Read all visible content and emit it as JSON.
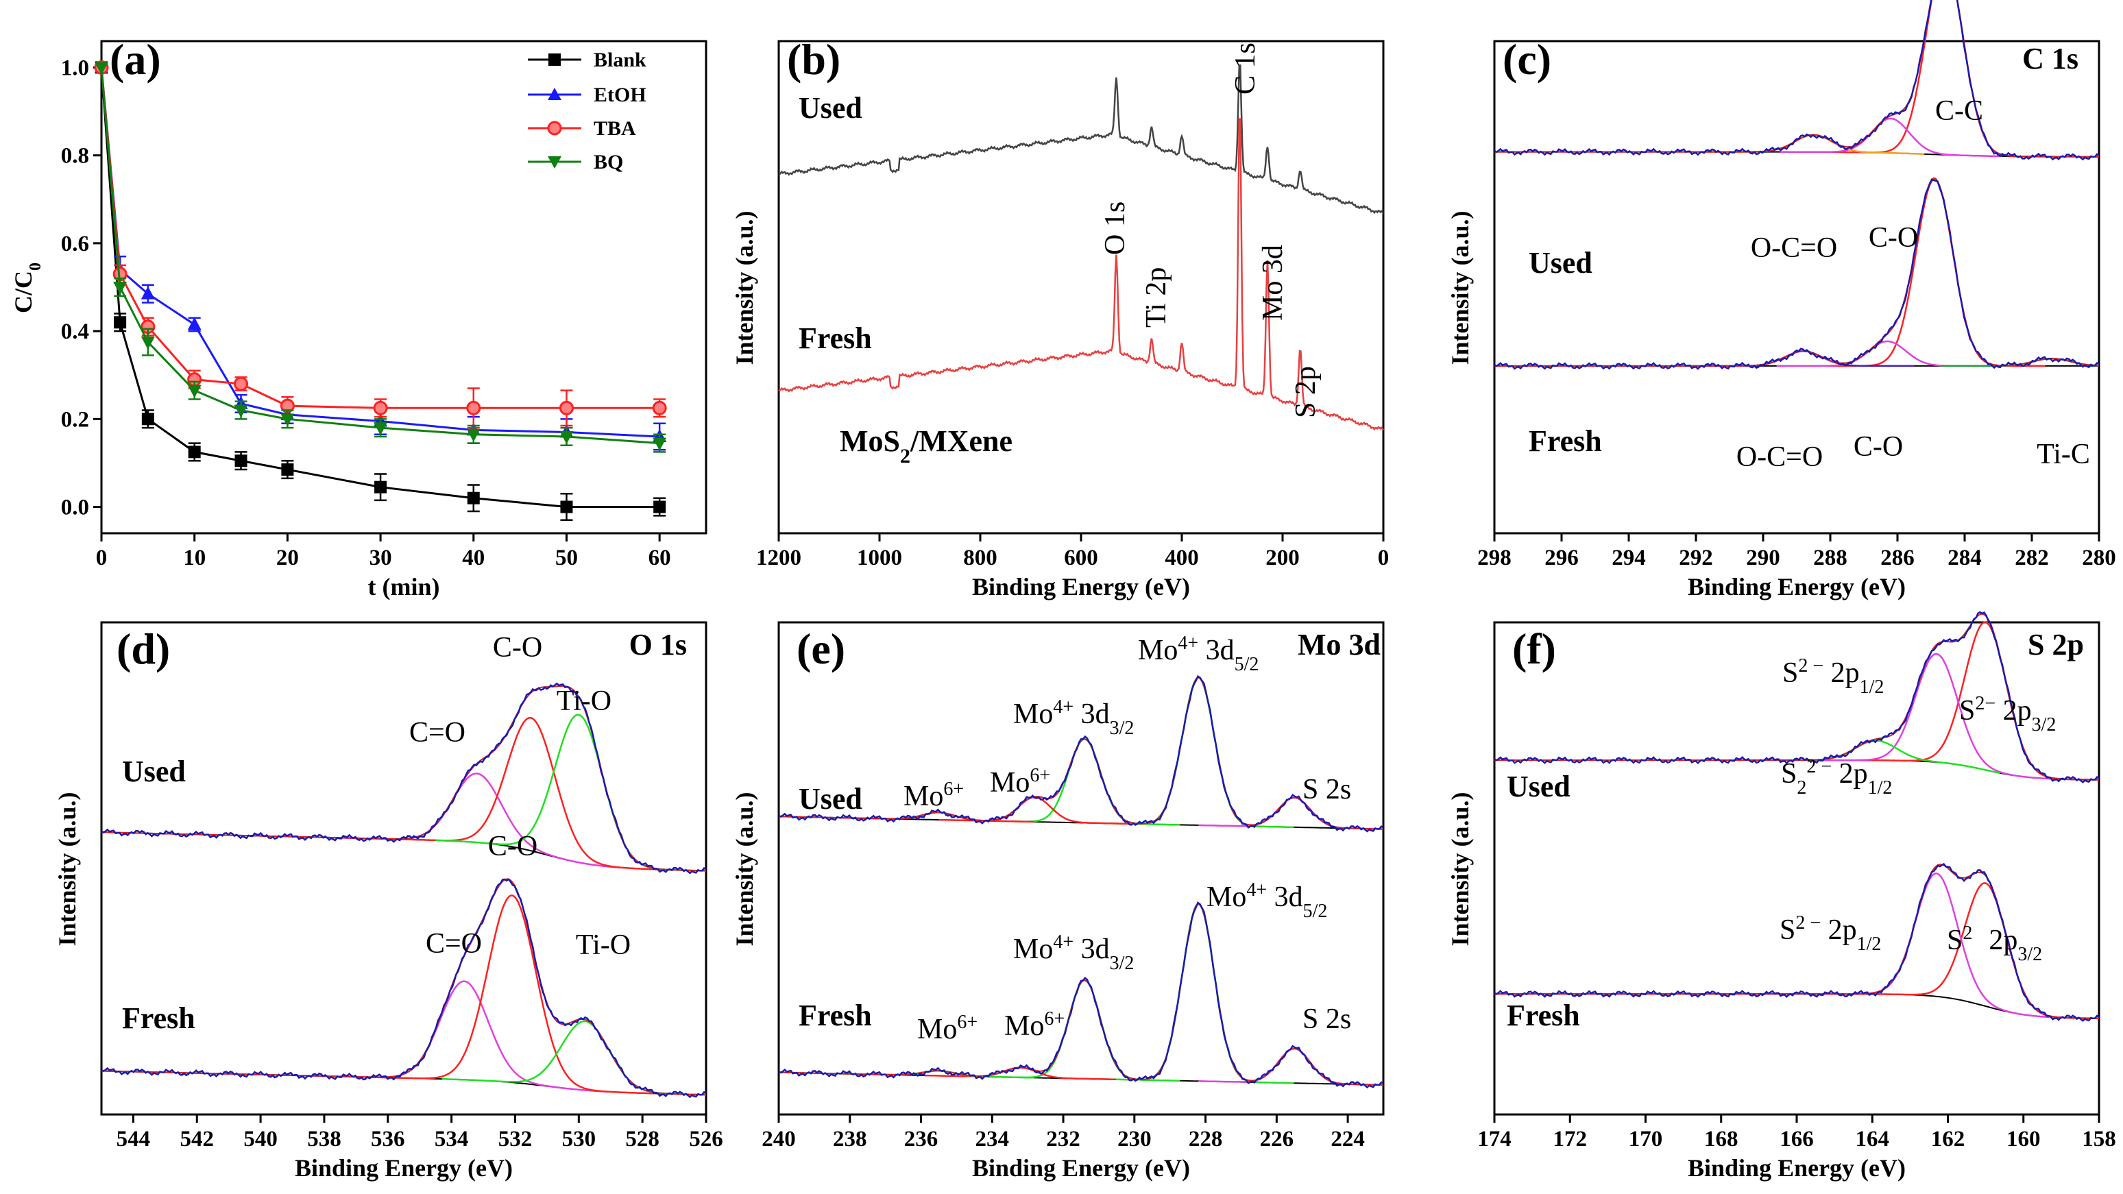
{
  "chart_data": [
    {
      "id": "a",
      "panel_label": "(a)",
      "type": "line",
      "xlabel": "t (min)",
      "ylabel": "C/C",
      "ylabel_sub": "0",
      "xlim": [
        0,
        65
      ],
      "ylim": [
        -0.06,
        1.06
      ],
      "xticks": [
        0,
        10,
        20,
        30,
        40,
        50,
        60
      ],
      "xtick_labels": [
        "0",
        "10",
        "20",
        "30",
        "40",
        "50",
        "60"
      ],
      "yticks": [
        0.0,
        0.2,
        0.4,
        0.6,
        0.8,
        1.0
      ],
      "ytick_labels": [
        "0.0",
        "0.2",
        "0.4",
        "0.6",
        "0.8",
        "1.0"
      ],
      "x": [
        0,
        2,
        5,
        10,
        15,
        20,
        30,
        40,
        50,
        60
      ],
      "series": [
        {
          "name": "Blank",
          "color": "#000000",
          "marker": "square",
          "values": [
            1.0,
            0.42,
            0.2,
            0.125,
            0.105,
            0.085,
            0.045,
            0.02,
            0.0,
            0.0
          ],
          "errors": [
            0,
            0.02,
            0.02,
            0.02,
            0.02,
            0.02,
            0.03,
            0.03,
            0.03,
            0.02
          ]
        },
        {
          "name": "EtOH",
          "color": "#1a1aff",
          "marker": "triangle-up",
          "values": [
            1.0,
            0.54,
            0.485,
            0.415,
            0.235,
            0.21,
            0.195,
            0.175,
            0.17,
            0.16
          ],
          "errors": [
            0,
            0.03,
            0.02,
            0.015,
            0.02,
            0.02,
            0.03,
            0.03,
            0.03,
            0.03
          ]
        },
        {
          "name": "TBA",
          "color": "#ff2020",
          "marker": "circle",
          "values": [
            1.0,
            0.53,
            0.41,
            0.29,
            0.28,
            0.23,
            0.225,
            0.225,
            0.225,
            0.225
          ],
          "errors": [
            0,
            0.02,
            0.02,
            0.02,
            0.015,
            0.02,
            0.02,
            0.045,
            0.04,
            0.02
          ]
        },
        {
          "name": "BQ",
          "color": "#108010",
          "marker": "triangle-down",
          "values": [
            1.0,
            0.5,
            0.375,
            0.265,
            0.22,
            0.2,
            0.18,
            0.165,
            0.16,
            0.145
          ],
          "errors": [
            0,
            0.02,
            0.03,
            0.02,
            0.02,
            0.02,
            0.02,
            0.02,
            0.02,
            0.02
          ]
        }
      ],
      "legend": "top-right"
    },
    {
      "id": "b",
      "panel_label": "(b)",
      "type": "line",
      "xlabel": "Binding Energy (eV)",
      "ylabel": "Intensity (a.u.)",
      "xlim": [
        1200,
        0
      ],
      "xticks": [
        1200,
        1000,
        800,
        600,
        400,
        200,
        0
      ],
      "xtick_labels": [
        "1200",
        "1000",
        "800",
        "600",
        "400",
        "200",
        "0"
      ],
      "sample_label": "MoS",
      "sample_label_sub": "2",
      "sample_label_rest": "/MXene",
      "series": [
        {
          "name": "Used",
          "color": "#444444",
          "level": 0.73,
          "peaks": [
            [
              530,
              0.12
            ],
            [
              460,
              0.04
            ],
            [
              400,
              0.04
            ],
            [
              285,
              0.23
            ],
            [
              230,
              0.07
            ],
            [
              165,
              0.04
            ]
          ]
        },
        {
          "name": "Fresh",
          "color": "#e84040",
          "level": 0.29,
          "peaks": [
            [
              530,
              0.2
            ],
            [
              460,
              0.05
            ],
            [
              400,
              0.06
            ],
            [
              285,
              0.58
            ],
            [
              230,
              0.28
            ],
            [
              165,
              0.12
            ]
          ]
        }
      ],
      "annotations": [
        "O 1s",
        "Ti 2p",
        "C 1s",
        "Mo 3d",
        "S 2p"
      ]
    },
    {
      "id": "c",
      "panel_label": "(c)",
      "title": "C 1s",
      "type": "line",
      "xlabel": "Binding Energy (eV)",
      "ylabel": "Intensity (a.u.)",
      "xlim": [
        298,
        280
      ],
      "xticks": [
        298,
        296,
        294,
        292,
        290,
        288,
        286,
        284,
        282,
        280
      ],
      "xtick_labels": [
        "298",
        "296",
        "294",
        "292",
        "290",
        "288",
        "286",
        "284",
        "282",
        "280"
      ],
      "series": [
        {
          "name": "Used",
          "components": [
            {
              "label": "C-C",
              "center": 284.6,
              "height": 0.4,
              "color": "#ff2020"
            },
            {
              "label": "C-O",
              "center": 286.2,
              "height": 0.07,
              "color": "#e040e0"
            },
            {
              "label": "O-C=O",
              "center": 288.5,
              "height": 0.035,
              "color": "#f0a020"
            }
          ]
        },
        {
          "name": "Fresh",
          "components": [
            {
              "label": "C-C",
              "center": 284.9,
              "height": 0.38,
              "color": "#ff2020"
            },
            {
              "label": "C-O",
              "center": 286.3,
              "height": 0.05,
              "color": "#e040e0"
            },
            {
              "label": "O-C=O",
              "center": 288.8,
              "height": 0.03,
              "color": "#4020c0"
            },
            {
              "label": "Ti-C",
              "center": 281.4,
              "height": 0.015,
              "color": "#20a040"
            }
          ]
        }
      ]
    },
    {
      "id": "d",
      "panel_label": "(d)",
      "title": "O 1s",
      "type": "line",
      "xlabel": "Binding Energy (eV)",
      "ylabel": "Intensity (a.u.)",
      "xlim": [
        545,
        526
      ],
      "xticks": [
        544,
        542,
        540,
        538,
        536,
        534,
        532,
        530,
        528,
        526
      ],
      "xtick_labels": [
        "544",
        "542",
        "540",
        "538",
        "536",
        "534",
        "532",
        "530",
        "528",
        "526"
      ],
      "series": [
        {
          "name": "Used",
          "components": [
            {
              "label": "C=O",
              "center": 533.2,
              "height": 0.14,
              "color": "#e040e0"
            },
            {
              "label": "C-O",
              "center": 531.5,
              "height": 0.27,
              "color": "#ff2020"
            },
            {
              "label": "Ti-O",
              "center": 530.0,
              "height": 0.3,
              "color": "#20e020"
            }
          ]
        },
        {
          "name": "Fresh",
          "components": [
            {
              "label": "C=O",
              "center": 533.6,
              "height": 0.2,
              "color": "#e040e0"
            },
            {
              "label": "C-O",
              "center": 532.1,
              "height": 0.38,
              "color": "#ff2020"
            },
            {
              "label": "Ti-O",
              "center": 529.8,
              "height": 0.14,
              "color": "#20e020"
            }
          ]
        }
      ]
    },
    {
      "id": "e",
      "panel_label": "(e)",
      "title": "Mo 3d",
      "type": "line",
      "xlabel": "Binding Energy (eV)",
      "ylabel": "Intensity (a.u.)",
      "xlim": [
        240,
        223
      ],
      "xticks": [
        240,
        238,
        236,
        234,
        232,
        230,
        228,
        226,
        224
      ],
      "xtick_labels": [
        "240",
        "238",
        "236",
        "234",
        "232",
        "230",
        "228",
        "226",
        "224"
      ],
      "series": [
        {
          "name": "Used",
          "components": [
            {
              "label": "Mo4+ 3d5/2",
              "center": 228.2,
              "height": 0.3,
              "color": "#20e020"
            },
            {
              "label": "Mo4+ 3d3/2",
              "center": 231.4,
              "height": 0.17,
              "color": "#20e020"
            },
            {
              "label": "Mo6+",
              "center": 232.8,
              "height": 0.05,
              "color": "#ff2020"
            },
            {
              "label": "Mo6+",
              "center": 235.5,
              "height": 0.015,
              "color": "#ff2020"
            },
            {
              "label": "S 2s",
              "center": 225.5,
              "height": 0.06,
              "color": "#e040e0"
            }
          ]
        },
        {
          "name": "Fresh",
          "components": [
            {
              "label": "Mo4+ 3d5/2",
              "center": 228.2,
              "height": 0.36,
              "color": "#20e020"
            },
            {
              "label": "Mo4+ 3d3/2",
              "center": 231.4,
              "height": 0.2,
              "color": "#20e020"
            },
            {
              "label": "Mo6+",
              "center": 233.2,
              "height": 0.02,
              "color": "#ff2020"
            },
            {
              "label": "Mo6+",
              "center": 235.5,
              "height": 0.01,
              "color": "#20e020"
            },
            {
              "label": "S 2s",
              "center": 225.5,
              "height": 0.07,
              "color": "#e040e0"
            }
          ]
        }
      ]
    },
    {
      "id": "f",
      "panel_label": "(f)",
      "title": "S 2p",
      "type": "line",
      "xlabel": "Binding Energy (eV)",
      "ylabel": "Intensity (a.u.)",
      "xlim": [
        174,
        158
      ],
      "xticks": [
        174,
        172,
        170,
        168,
        166,
        164,
        162,
        160,
        158
      ],
      "xtick_labels": [
        "174",
        "172",
        "170",
        "168",
        "166",
        "164",
        "162",
        "160",
        "158"
      ],
      "series": [
        {
          "name": "Used",
          "components": [
            {
              "label": "S2- 2p3/2",
              "center": 161.0,
              "height": 0.3,
              "color": "#ff2020"
            },
            {
              "label": "S2- 2p1/2",
              "center": 162.3,
              "height": 0.22,
              "color": "#e040e0"
            },
            {
              "label": "S22- 2p1/2",
              "center": 163.9,
              "height": 0.04,
              "color": "#20e020"
            }
          ]
        },
        {
          "name": "Fresh",
          "components": [
            {
              "label": "S2- 2p3/2",
              "center": 161.0,
              "height": 0.25,
              "color": "#ff2020"
            },
            {
              "label": "S2- 2p1/2",
              "center": 162.3,
              "height": 0.25,
              "color": "#e040e0"
            }
          ]
        }
      ]
    }
  ],
  "text": {
    "used": "Used",
    "fresh": "Fresh",
    "c_labels": {
      "cc": "C-C",
      "co": "C-O",
      "ocoo": "O-C=O",
      "tic": "Ti-C"
    },
    "d_labels": {
      "co": "C-O",
      "cdo": "C=O",
      "tio": "Ti-O"
    },
    "e_labels": {
      "mo": "Mo",
      "sup4": "4+",
      "sup6": "6+",
      "d32": " 3d",
      "s32": "3/2",
      "s52": "5/2",
      "s2s": "S 2s"
    },
    "f_labels": {
      "s": "S",
      "sup2": "2 −",
      "sup2b": "2−",
      "sub2": "2",
      "p12": " 2p",
      "s12": "1/2",
      "s32": "3/2",
      "sfresh": "S",
      "supfresh": "2",
      "p32fresh": "2p"
    }
  }
}
